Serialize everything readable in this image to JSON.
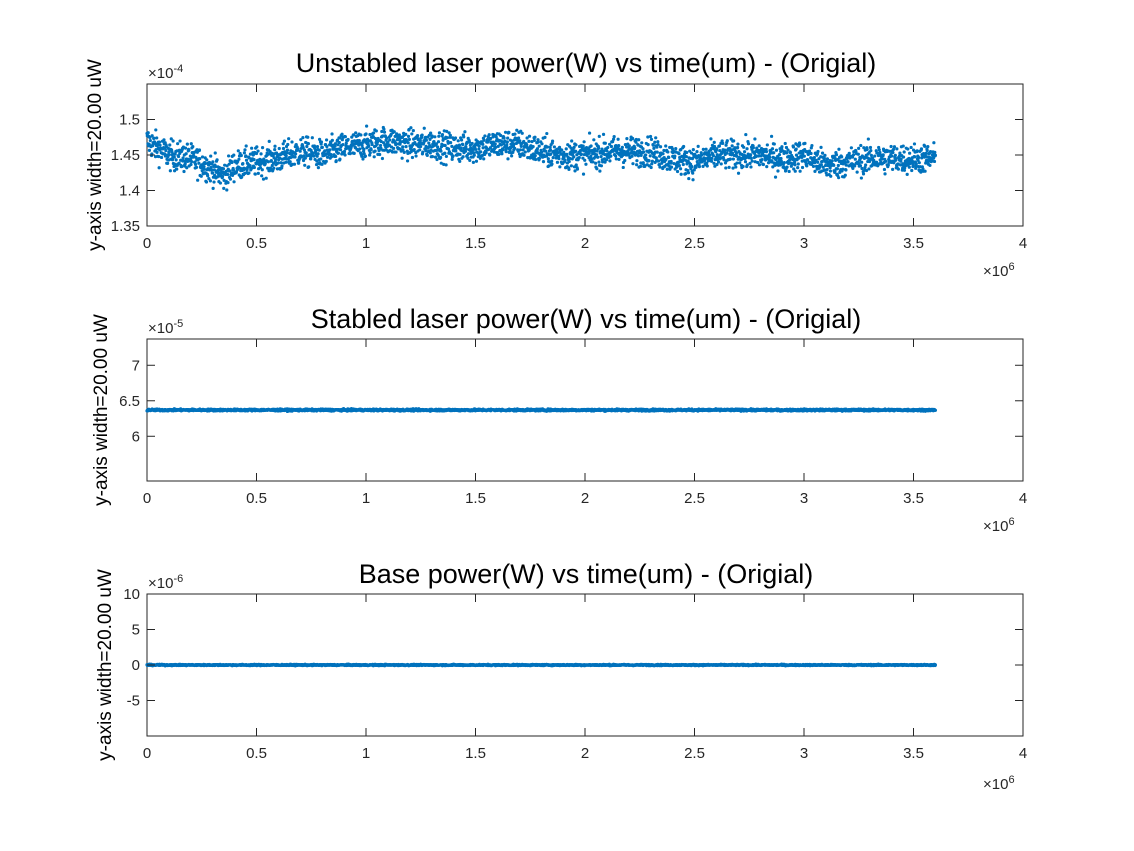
{
  "colors": {
    "series": "#0072BD",
    "axis": "#262626",
    "background": "#ffffff"
  },
  "chart_data": [
    {
      "type": "scatter",
      "title": "Unstabled laser power(W) vs time(um) - (Origial)",
      "ylabel": "y-axis width=20.00 uW",
      "xlim": [
        0,
        4000000
      ],
      "ylim": [
        0.000135,
        0.000155
      ],
      "x_ticks": [
        0,
        500000,
        1000000,
        1500000,
        2000000,
        2500000,
        3000000,
        3500000,
        4000000
      ],
      "x_tick_labels": [
        "0",
        "0.5",
        "1",
        "1.5",
        "2",
        "2.5",
        "3",
        "3.5",
        "4"
      ],
      "y_ticks": [
        0.000135,
        0.00014,
        0.000145,
        0.00015
      ],
      "y_tick_labels": [
        "1.35",
        "1.4",
        "1.45",
        "1.5"
      ],
      "x_exponent": {
        "base": "×10",
        "power": "6"
      },
      "y_exponent": {
        "base": "×10",
        "power": "-4"
      },
      "series": [
        {
          "x": [
            0,
            100000,
            200000,
            300000,
            350000,
            400000,
            500000,
            600000,
            700000,
            800000,
            900000,
            1000000,
            1100000,
            1200000,
            1300000,
            1400000,
            1500000,
            1600000,
            1700000,
            1800000,
            1900000,
            2000000,
            2100000,
            2200000,
            2300000,
            2400000,
            2500000,
            2600000,
            2700000,
            2800000,
            2900000,
            3000000,
            3100000,
            3200000,
            3300000,
            3400000,
            3500000,
            3600000
          ],
          "y": [
            0.000147,
            0.000145,
            0.0001445,
            0.000143,
            0.000142,
            0.0001435,
            0.000144,
            0.0001445,
            0.0001455,
            0.000145,
            0.000146,
            0.0001465,
            0.000147,
            0.0001465,
            0.0001465,
            0.000146,
            0.000146,
            0.0001465,
            0.0001465,
            0.0001455,
            0.000145,
            0.000145,
            0.0001455,
            0.0001455,
            0.0001455,
            0.0001445,
            0.000144,
            0.000145,
            0.000145,
            0.000145,
            0.0001445,
            0.000145,
            0.0001435,
            0.000144,
            0.0001445,
            0.0001445,
            0.0001445,
            0.0001445
          ],
          "spread": 4.5e-06
        }
      ]
    },
    {
      "type": "scatter",
      "title": "Stabled laser power(W) vs time(um) - (Origial)",
      "ylabel": "y-axis width=20.00 uW",
      "xlim": [
        0,
        4000000
      ],
      "ylim": [
        5.37e-05,
        7.37e-05
      ],
      "x_ticks": [
        0,
        500000,
        1000000,
        1500000,
        2000000,
        2500000,
        3000000,
        3500000,
        4000000
      ],
      "x_tick_labels": [
        "0",
        "0.5",
        "1",
        "1.5",
        "2",
        "2.5",
        "3",
        "3.5",
        "4"
      ],
      "y_ticks": [
        6e-05,
        6.5e-05,
        7e-05
      ],
      "y_tick_labels": [
        "6",
        "6.5",
        "7"
      ],
      "x_exponent": {
        "base": "×10",
        "power": "6"
      },
      "y_exponent": {
        "base": "×10",
        "power": "-5"
      },
      "series": [
        {
          "x": [
            0,
            3600000
          ],
          "y": [
            6.37e-05,
            6.37e-05
          ],
          "spread": 3e-07
        }
      ]
    },
    {
      "type": "scatter",
      "title": "Base power(W) vs time(um) - (Origial)",
      "ylabel": "y-axis width=20.00 uW",
      "xlim": [
        0,
        4000000
      ],
      "ylim": [
        -1e-05,
        1e-05
      ],
      "x_ticks": [
        0,
        500000,
        1000000,
        1500000,
        2000000,
        2500000,
        3000000,
        3500000,
        4000000
      ],
      "x_tick_labels": [
        "0",
        "0.5",
        "1",
        "1.5",
        "2",
        "2.5",
        "3",
        "3.5",
        "4"
      ],
      "y_ticks": [
        -5e-06,
        0,
        5e-06,
        1e-05
      ],
      "y_tick_labels": [
        "-5",
        "0",
        "5",
        "10"
      ],
      "x_exponent": {
        "base": "×10",
        "power": "6"
      },
      "y_exponent": {
        "base": "×10",
        "power": "-6"
      },
      "series": [
        {
          "x": [
            0,
            3600000
          ],
          "y": [
            0,
            0
          ],
          "spread": 2e-07
        }
      ]
    }
  ]
}
